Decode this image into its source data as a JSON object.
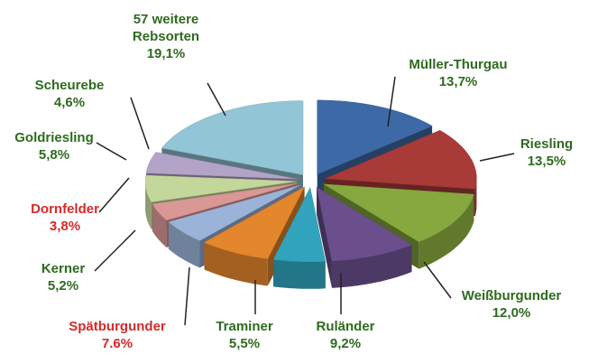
{
  "chart_data": {
    "type": "pie",
    "categories": [
      "Müller-Thurgau",
      "Riesling",
      "Weißburgunder",
      "Ruländer",
      "Traminer",
      "Spätburgunder",
      "Kerner",
      "Dornfelder",
      "Goldriesling",
      "Scheurebe",
      "57 weitere Rebsorten"
    ],
    "values": [
      13.7,
      13.5,
      12.0,
      9.2,
      5.5,
      7.6,
      5.2,
      3.8,
      5.8,
      4.6,
      19.1
    ],
    "value_labels": [
      "13,7%",
      "13,5%",
      "12,0%",
      "9,2%",
      "5,5%",
      "7.6%",
      "5,2%",
      "3,8%",
      "5,8%",
      "4,6%",
      "19,1%"
    ],
    "colors": [
      "#3d6aa6",
      "#a83a37",
      "#86a83e",
      "#6b4f8c",
      "#31a3bd",
      "#e3862c",
      "#9bb3d9",
      "#d99796",
      "#c3d79b",
      "#b3a4c7",
      "#92c5d6"
    ],
    "label_colors": [
      "#2e6b1e",
      "#2e6b1e",
      "#2e6b1e",
      "#2e6b1e",
      "#2e6b1e",
      "#d42a2a",
      "#2e6b1e",
      "#d42a2a",
      "#2e6b1e",
      "#2e6b1e",
      "#2e6b1e"
    ]
  }
}
